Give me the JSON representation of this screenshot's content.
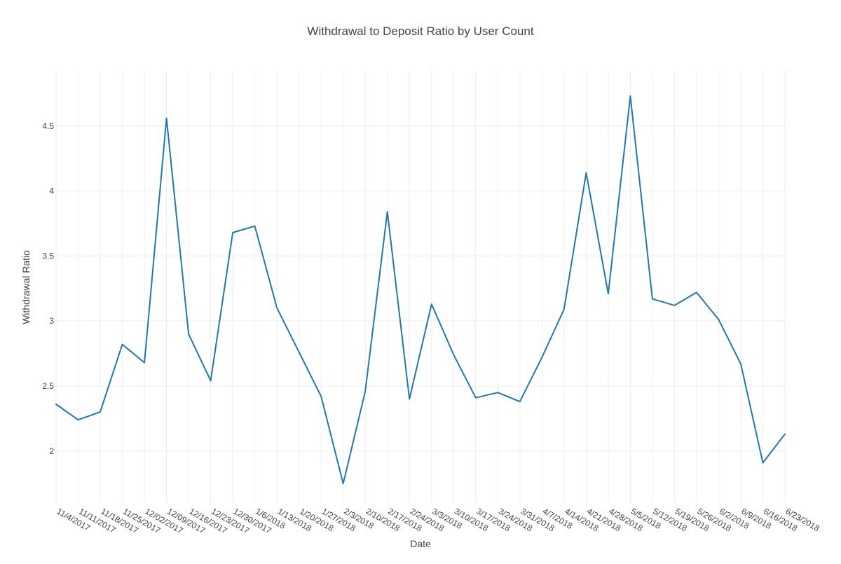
{
  "chart_data": {
    "type": "line",
    "title": "Withdrawal to Deposit Ratio by User Count",
    "xlabel": "Date",
    "ylabel": "Withdrawal Ratio",
    "grid": true,
    "legend": "none",
    "x": [
      "11/4/2017",
      "11/11/2017",
      "11/18/2017",
      "11/25/2017",
      "12/02/2017",
      "12/09/2017",
      "12/16/2017",
      "12/23/2017",
      "12/30/2017",
      "1/6/2018",
      "1/13/2018",
      "1/20/2018",
      "1/27/2018",
      "2/3/2018",
      "2/10/2018",
      "2/17/2018",
      "2/24/2018",
      "3/3/2018",
      "3/10/2018",
      "3/17/2018",
      "3/24/2018",
      "3/31/2018",
      "4/7/2018",
      "4/14/2018",
      "4/21/2018",
      "4/28/2018",
      "5/5/2018",
      "5/12/2018",
      "5/19/2018",
      "5/26/2018",
      "6/2/2018",
      "6/9/2018",
      "6/16/2018",
      "6/23/2018"
    ],
    "ylim": [
      1.6,
      4.93
    ],
    "yticks": [
      2,
      2.5,
      3,
      3.5,
      4,
      4.5
    ],
    "series": [
      {
        "color": "#1f77b4",
        "values": [
          2.36,
          2.24,
          2.3,
          2.82,
          2.68,
          4.56,
          2.9,
          2.54,
          3.68,
          3.73,
          3.1,
          2.76,
          2.42,
          1.75,
          2.46,
          3.84,
          2.4,
          3.13,
          2.74,
          2.41,
          2.45,
          2.38,
          2.72,
          3.09,
          4.14,
          3.21,
          4.73,
          3.17,
          3.12,
          3.22,
          3.01,
          2.67,
          1.91,
          2.13
        ]
      }
    ]
  }
}
